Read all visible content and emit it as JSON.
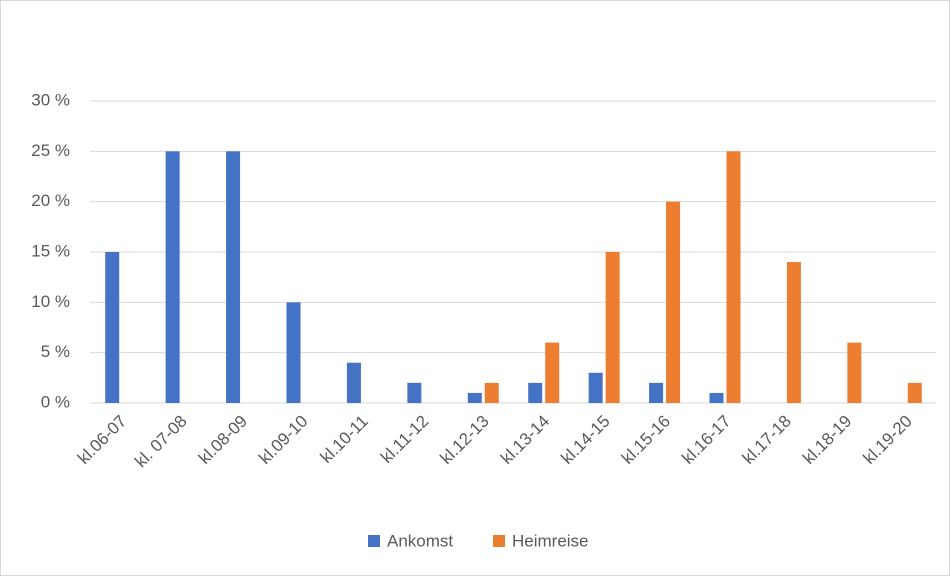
{
  "chart_data": {
    "type": "bar",
    "categories": [
      "kl.06-07",
      "kl. 07-08",
      "kl.08-09",
      "kl.09-10",
      "kl.10-11",
      "kl.11-12",
      "kl.12-13",
      "kl.13-14",
      "kl.14-15",
      "kl.15-16",
      "kl.16-17",
      "kl.17-18",
      "kl.18-19",
      "kl.19-20"
    ],
    "series": [
      {
        "name": "Ankomst",
        "color": "#4472c4",
        "values": [
          15,
          25,
          25,
          10,
          4,
          2,
          1,
          2,
          3,
          2,
          1,
          0,
          0,
          0
        ]
      },
      {
        "name": "Heimreise",
        "color": "#ed7d31",
        "values": [
          0,
          0,
          0,
          0,
          0,
          0,
          2,
          6,
          15,
          20,
          25,
          14,
          6,
          2
        ]
      }
    ],
    "ylim": [
      0,
      30
    ],
    "yticks": [
      {
        "value": 0,
        "label": "0 %"
      },
      {
        "value": 5,
        "label": "5 %"
      },
      {
        "value": 10,
        "label": "10 %"
      },
      {
        "value": 15,
        "label": "15 %"
      },
      {
        "value": 20,
        "label": "20 %"
      },
      {
        "value": 25,
        "label": "25 %"
      },
      {
        "value": 30,
        "label": "30 %"
      }
    ],
    "grid": true,
    "legend": "bottom"
  }
}
